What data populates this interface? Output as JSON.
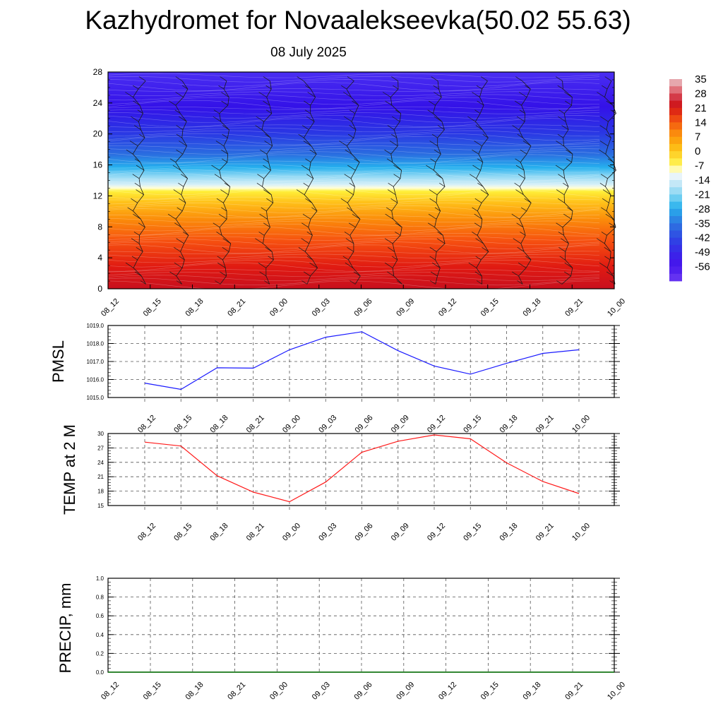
{
  "title": "Kazhydromet for Novaalekseevka(50.02 55.63)",
  "subtitle": "08 July 2025",
  "chart_data": [
    {
      "type": "heatmap",
      "name": "temperature-height-section",
      "y_range": [
        0,
        28
      ],
      "y_ticks": [
        "0",
        "4",
        "8",
        "12",
        "16",
        "20",
        "24",
        "28"
      ],
      "x_ticks": [
        "08_12",
        "08_15",
        "08_18",
        "08_21",
        "09_00",
        "09_03",
        "09_06",
        "09_09",
        "09_12",
        "09_15",
        "09_18",
        "09_21",
        "10_00"
      ],
      "colorbar_labels": [
        "35",
        "28",
        "21",
        "14",
        "7",
        "0",
        "-7",
        "-14",
        "-21",
        "-28",
        "-35",
        "-42",
        "-49",
        "-56"
      ],
      "colorbar_range": [
        -63,
        35
      ],
      "freezing_level": 13,
      "wind_barbs": true
    },
    {
      "type": "line",
      "ylabel": "PMSL",
      "ylim": [
        1015.0,
        1019.0
      ],
      "y_ticks": [
        "1015.0",
        "1016.0",
        "1017.0",
        "1018.0",
        "1019.0"
      ],
      "x": [
        "08_12",
        "08_15",
        "08_18",
        "08_21",
        "09_00",
        "09_03",
        "09_06",
        "09_09",
        "09_12",
        "09_15",
        "09_18",
        "09_21",
        "10_00"
      ],
      "values": [
        1015.8,
        1015.45,
        1016.65,
        1016.63,
        1017.65,
        1018.35,
        1018.65,
        1017.6,
        1016.75,
        1016.3,
        1016.9,
        1017.45,
        1017.65
      ],
      "color": "#1a1aff",
      "grid": true
    },
    {
      "type": "line",
      "ylabel": "TEMP at 2 M",
      "ylim": [
        15,
        30
      ],
      "y_ticks": [
        "15",
        "18",
        "21",
        "24",
        "27",
        "30"
      ],
      "x": [
        "08_12",
        "08_15",
        "08_18",
        "08_21",
        "09_00",
        "09_03",
        "09_06",
        "09_09",
        "09_12",
        "09_15",
        "09_18",
        "09_21",
        "10_00"
      ],
      "values": [
        28.2,
        27.4,
        21.2,
        17.8,
        15.8,
        19.9,
        26.1,
        28.4,
        29.7,
        28.9,
        23.9,
        20.0,
        17.5
      ],
      "color": "#ff1a1a",
      "grid": true
    },
    {
      "type": "line",
      "ylabel": "PRECIP, mm",
      "ylim": [
        0.0,
        1.0
      ],
      "y_ticks": [
        "0.0",
        "0.2",
        "0.4",
        "0.6",
        "0.8",
        "1.0"
      ],
      "x": [
        "08_12",
        "08_15",
        "08_18",
        "08_21",
        "09_00",
        "09_03",
        "09_06",
        "09_09",
        "09_12",
        "09_15",
        "09_18",
        "09_21",
        "10_00"
      ],
      "values": [
        0,
        0,
        0,
        0,
        0,
        0,
        0,
        0,
        0,
        0,
        0,
        0,
        0
      ],
      "color": "#007000",
      "grid": true
    }
  ]
}
